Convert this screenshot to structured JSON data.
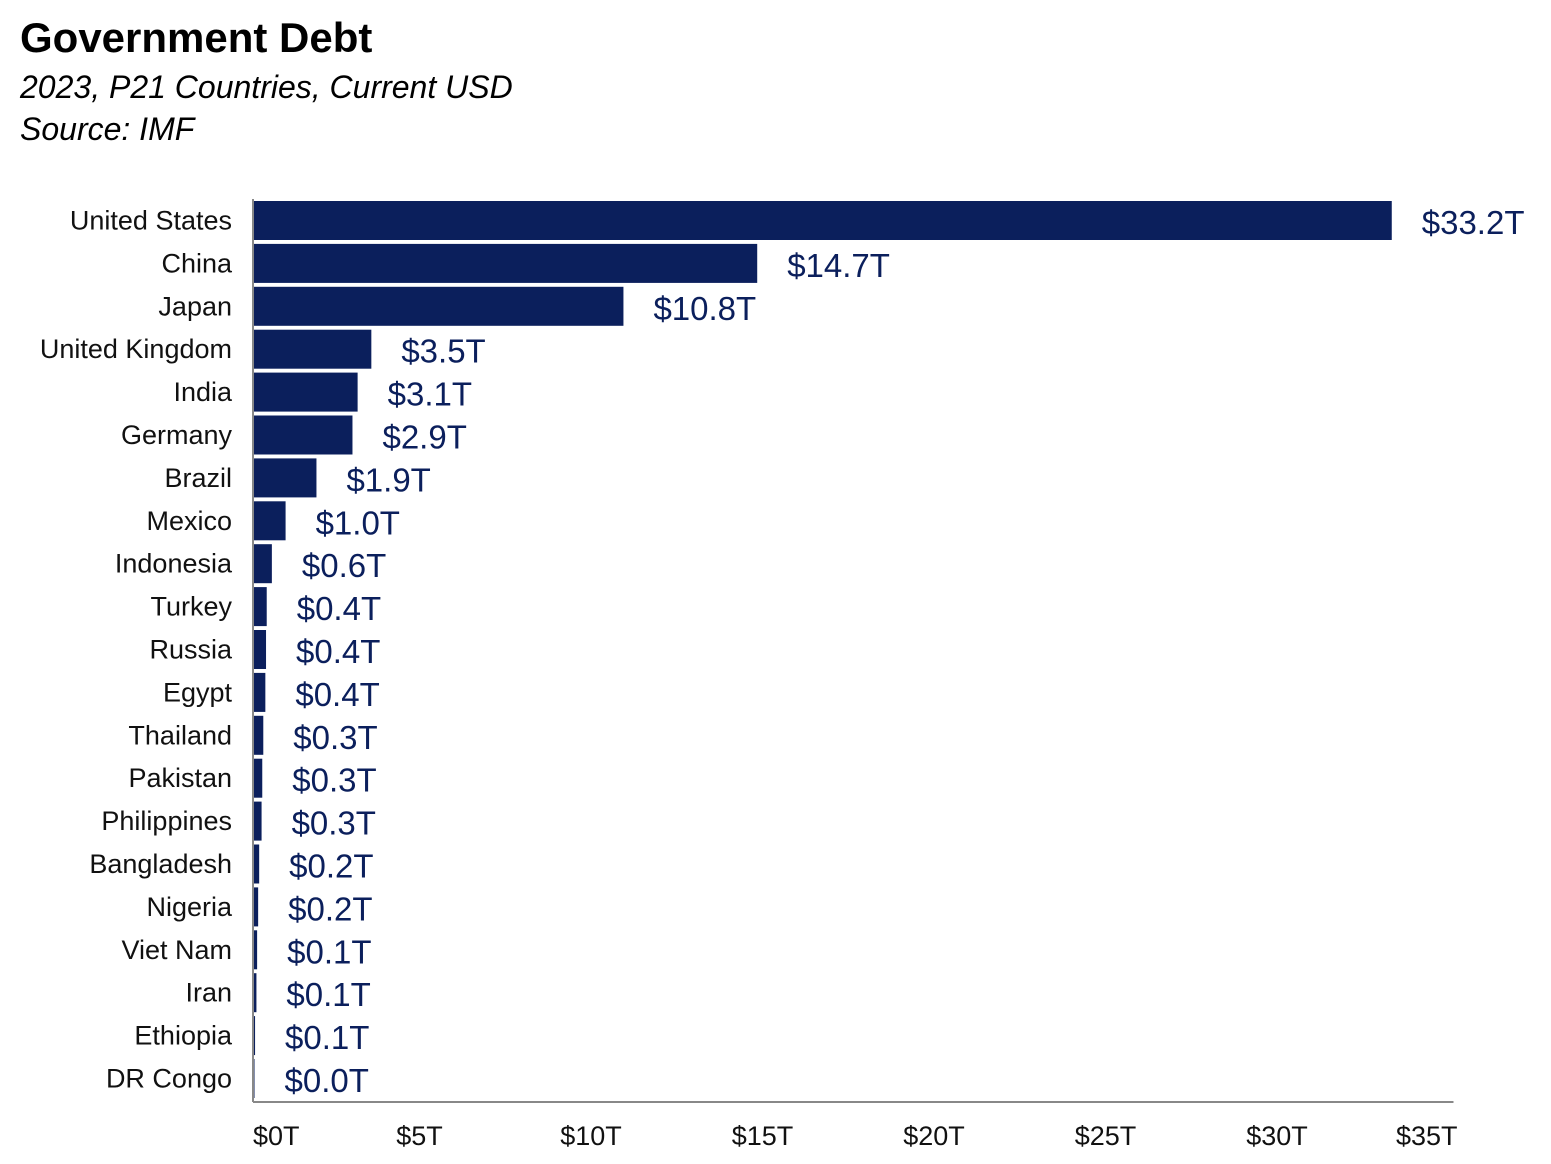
{
  "header": {
    "title": "Government Debt",
    "subtitle": "2023, P21 Countries, Current USD",
    "source": "Source: IMF"
  },
  "colors": {
    "bar": "#0b1f5c",
    "value_label": "#0b1f5c",
    "axis": "#888888"
  },
  "chart_data": {
    "type": "bar",
    "orientation": "horizontal",
    "title": "Government Debt",
    "subtitle": "2023, P21 Countries, Current USD",
    "xlabel": "",
    "ylabel": "",
    "xlim": [
      0,
      35
    ],
    "grid": false,
    "x_ticks": [
      {
        "value": 0,
        "label": "$0T"
      },
      {
        "value": 5,
        "label": "$5T"
      },
      {
        "value": 10,
        "label": "$10T"
      },
      {
        "value": 15,
        "label": "$15T"
      },
      {
        "value": 20,
        "label": "$20T"
      },
      {
        "value": 25,
        "label": "$25T"
      },
      {
        "value": 30,
        "label": "$30T"
      },
      {
        "value": 35,
        "label": "$35T"
      }
    ],
    "categories": [
      "United States",
      "China",
      "Japan",
      "United Kingdom",
      "India",
      "Germany",
      "Brazil",
      "Mexico",
      "Indonesia",
      "Turkey",
      "Russia",
      "Egypt",
      "Thailand",
      "Pakistan",
      "Philippines",
      "Bangladesh",
      "Nigeria",
      "Viet Nam",
      "Iran",
      "Ethiopia",
      "DR Congo"
    ],
    "values": [
      33.2,
      14.7,
      10.8,
      3.45,
      3.05,
      2.9,
      1.85,
      0.95,
      0.55,
      0.4,
      0.38,
      0.36,
      0.3,
      0.27,
      0.25,
      0.18,
      0.15,
      0.12,
      0.1,
      0.06,
      0.02
    ],
    "value_labels": [
      "$33.2T",
      "$14.7T",
      "$10.8T",
      "$3.5T",
      "$3.1T",
      "$2.9T",
      "$1.9T",
      "$1.0T",
      "$0.6T",
      "$0.4T",
      "$0.4T",
      "$0.4T",
      "$0.3T",
      "$0.3T",
      "$0.3T",
      "$0.2T",
      "$0.2T",
      "$0.1T",
      "$0.1T",
      "$0.1T",
      "$0.0T"
    ]
  }
}
